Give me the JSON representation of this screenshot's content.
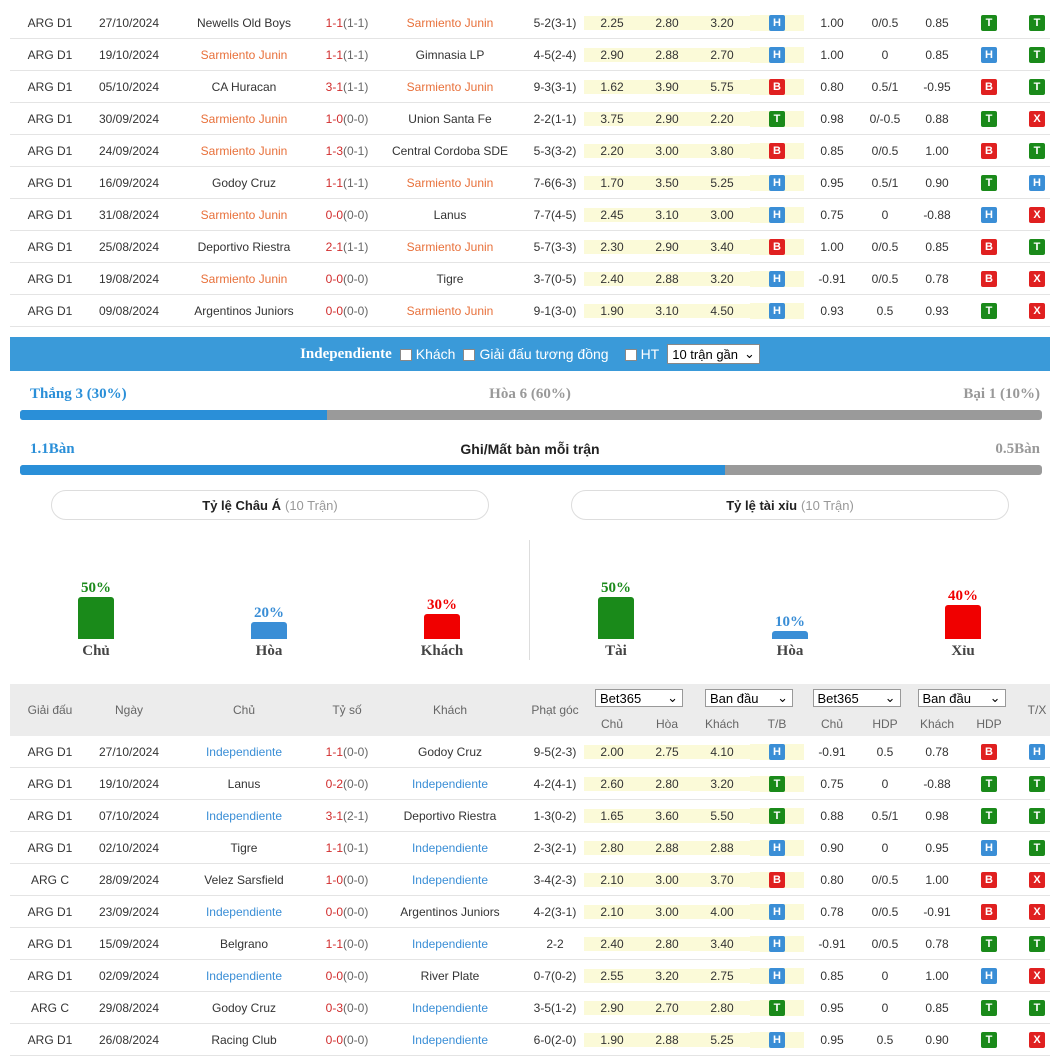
{
  "top_rows": [
    {
      "league": "ARG D1",
      "date": "27/10/2024",
      "home": "Newells Old Boys",
      "home_hl": "",
      "score": "1-1",
      "ht": "(1-1)",
      "away": "Sarmiento Junin",
      "away_hl": "orange",
      "corner": "5-2(3-1)",
      "o1": "2.25",
      "o2": "2.80",
      "o3": "3.20",
      "tb": "H",
      "h1": "1.00",
      "h2": "0/0.5",
      "h3": "0.85",
      "hdp": "T",
      "tx": "T"
    },
    {
      "league": "ARG D1",
      "date": "19/10/2024",
      "home": "Sarmiento Junin",
      "home_hl": "orange",
      "score": "1-1",
      "ht": "(1-1)",
      "away": "Gimnasia LP",
      "away_hl": "",
      "corner": "4-5(2-4)",
      "o1": "2.90",
      "o2": "2.88",
      "o3": "2.70",
      "tb": "H",
      "h1": "1.00",
      "h2": "0",
      "h3": "0.85",
      "hdp": "H",
      "tx": "T"
    },
    {
      "league": "ARG D1",
      "date": "05/10/2024",
      "home": "CA Huracan",
      "home_hl": "",
      "score": "3-1",
      "ht": "(1-1)",
      "away": "Sarmiento Junin",
      "away_hl": "orange",
      "corner": "9-3(3-1)",
      "o1": "1.62",
      "o2": "3.90",
      "o3": "5.75",
      "tb": "B",
      "h1": "0.80",
      "h2": "0.5/1",
      "h3": "-0.95",
      "hdp": "B",
      "tx": "T"
    },
    {
      "league": "ARG D1",
      "date": "30/09/2024",
      "home": "Sarmiento Junin",
      "home_hl": "orange",
      "score": "1-0",
      "ht": "(0-0)",
      "away": "Union Santa Fe",
      "away_hl": "",
      "corner": "2-2(1-1)",
      "o1": "3.75",
      "o2": "2.90",
      "o3": "2.20",
      "tb": "T",
      "h1": "0.98",
      "h2": "0/-0.5",
      "h3": "0.88",
      "hdp": "T",
      "tx": "X"
    },
    {
      "league": "ARG D1",
      "date": "24/09/2024",
      "home": "Sarmiento Junin",
      "home_hl": "orange",
      "score": "1-3",
      "ht": "(0-1)",
      "away": "Central Cordoba SDE",
      "away_hl": "",
      "corner": "5-3(3-2)",
      "o1": "2.20",
      "o2": "3.00",
      "o3": "3.80",
      "tb": "B",
      "h1": "0.85",
      "h2": "0/0.5",
      "h3": "1.00",
      "hdp": "B",
      "tx": "T"
    },
    {
      "league": "ARG D1",
      "date": "16/09/2024",
      "home": "Godoy Cruz",
      "home_hl": "",
      "score": "1-1",
      "ht": "(1-1)",
      "away": "Sarmiento Junin",
      "away_hl": "orange",
      "corner": "7-6(6-3)",
      "o1": "1.70",
      "o2": "3.50",
      "o3": "5.25",
      "tb": "H",
      "h1": "0.95",
      "h2": "0.5/1",
      "h3": "0.90",
      "hdp": "T",
      "tx": "H"
    },
    {
      "league": "ARG D1",
      "date": "31/08/2024",
      "home": "Sarmiento Junin",
      "home_hl": "orange",
      "score": "0-0",
      "ht": "(0-0)",
      "away": "Lanus",
      "away_hl": "",
      "corner": "7-7(4-5)",
      "o1": "2.45",
      "o2": "3.10",
      "o3": "3.00",
      "tb": "H",
      "h1": "0.75",
      "h2": "0",
      "h3": "-0.88",
      "hdp": "H",
      "tx": "X"
    },
    {
      "league": "ARG D1",
      "date": "25/08/2024",
      "home": "Deportivo Riestra",
      "home_hl": "",
      "score": "2-1",
      "ht": "(1-1)",
      "away": "Sarmiento Junin",
      "away_hl": "orange",
      "corner": "5-7(3-3)",
      "o1": "2.30",
      "o2": "2.90",
      "o3": "3.40",
      "tb": "B",
      "h1": "1.00",
      "h2": "0/0.5",
      "h3": "0.85",
      "hdp": "B",
      "tx": "T"
    },
    {
      "league": "ARG D1",
      "date": "19/08/2024",
      "home": "Sarmiento Junin",
      "home_hl": "orange",
      "score": "0-0",
      "ht": "(0-0)",
      "away": "Tigre",
      "away_hl": "",
      "corner": "3-7(0-5)",
      "o1": "2.40",
      "o2": "2.88",
      "o3": "3.20",
      "tb": "H",
      "h1": "-0.91",
      "h2": "0/0.5",
      "h3": "0.78",
      "hdp": "B",
      "tx": "X"
    },
    {
      "league": "ARG D1",
      "date": "09/08/2024",
      "home": "Argentinos Juniors",
      "home_hl": "",
      "score": "0-0",
      "ht": "(0-0)",
      "away": "Sarmiento Junin",
      "away_hl": "orange",
      "corner": "9-1(3-0)",
      "o1": "1.90",
      "o2": "3.10",
      "o3": "4.50",
      "tb": "H",
      "h1": "0.93",
      "h2": "0.5",
      "h3": "0.93",
      "hdp": "T",
      "tx": "X"
    }
  ],
  "team_bar": {
    "team": "Independiente",
    "away_label": "Khách",
    "same_league_label": "Giải đấu tương đồng",
    "ht_label": "HT",
    "recent_select": "10 trận gần"
  },
  "summary": {
    "win": "Thắng 3 (30%)",
    "draw": "Hòa 6 (60%)",
    "loss": "Bại 1 (10%)",
    "win_fraction": 0.3,
    "goals_for": "1.1Bàn",
    "goals_title": "Ghi/Mất bàn mỗi trận",
    "goals_against": "0.5Bàn",
    "goals_fraction": 0.69
  },
  "asian": {
    "title": "Tỷ lệ Châu Á",
    "sub": "(10 Trận)",
    "bars": [
      {
        "pct": "50%",
        "label": "Chủ",
        "color": "#1a8a1a",
        "value": 0.5
      },
      {
        "pct": "20%",
        "label": "Hòa",
        "color": "#3a8ed6",
        "value": 0.2
      },
      {
        "pct": "30%",
        "label": "Khách",
        "color": "#f00000",
        "value": 0.3
      }
    ]
  },
  "ou": {
    "title": "Tỷ lệ tài xỉu",
    "sub": "(10 Trận)",
    "bars": [
      {
        "pct": "50%",
        "label": "Tài",
        "color": "#1a8a1a",
        "value": 0.5
      },
      {
        "pct": "10%",
        "label": "Hòa",
        "color": "#3a8ed6",
        "value": 0.1
      },
      {
        "pct": "40%",
        "label": "Xỉu",
        "color": "#f00000",
        "value": 0.4
      }
    ]
  },
  "header": {
    "league": "Giải đấu",
    "date": "Ngày",
    "home": "Chủ",
    "score": "Tỷ số",
    "away": "Khách",
    "corner": "Phạt góc",
    "book1": "Bet365",
    "type1": "Ban đầu",
    "book2": "Bet365",
    "type2": "Ban đầu",
    "o1": "Chủ",
    "o2": "Hòa",
    "o3": "Khách",
    "tb": "T/B",
    "h1": "Chủ",
    "h2": "HDP",
    "h3": "Khách",
    "hdp": "HDP",
    "tx": "T/X"
  },
  "bottom_rows": [
    {
      "league": "ARG D1",
      "date": "27/10/2024",
      "home": "Independiente",
      "home_hl": "blue",
      "score": "1-1",
      "ht": "(0-0)",
      "away": "Godoy Cruz",
      "away_hl": "",
      "corner": "9-5(2-3)",
      "o1": "2.00",
      "o2": "2.75",
      "o3": "4.10",
      "tb": "H",
      "h1": "-0.91",
      "h2": "0.5",
      "h3": "0.78",
      "hdp": "B",
      "tx": "H"
    },
    {
      "league": "ARG D1",
      "date": "19/10/2024",
      "home": "Lanus",
      "home_hl": "",
      "score": "0-2",
      "ht": "(0-0)",
      "away": "Independiente",
      "away_hl": "blue",
      "corner": "4-2(4-1)",
      "o1": "2.60",
      "o2": "2.80",
      "o3": "3.20",
      "tb": "T",
      "h1": "0.75",
      "h2": "0",
      "h3": "-0.88",
      "hdp": "T",
      "tx": "T"
    },
    {
      "league": "ARG D1",
      "date": "07/10/2024",
      "home": "Independiente",
      "home_hl": "blue",
      "score": "3-1",
      "ht": "(2-1)",
      "away": "Deportivo Riestra",
      "away_hl": "",
      "corner": "1-3(0-2)",
      "o1": "1.65",
      "o2": "3.60",
      "o3": "5.50",
      "tb": "T",
      "h1": "0.88",
      "h2": "0.5/1",
      "h3": "0.98",
      "hdp": "T",
      "tx": "T"
    },
    {
      "league": "ARG D1",
      "date": "02/10/2024",
      "home": "Tigre",
      "home_hl": "",
      "score": "1-1",
      "ht": "(0-1)",
      "away": "Independiente",
      "away_hl": "blue",
      "corner": "2-3(2-1)",
      "o1": "2.80",
      "o2": "2.88",
      "o3": "2.88",
      "tb": "H",
      "h1": "0.90",
      "h2": "0",
      "h3": "0.95",
      "hdp": "H",
      "tx": "T"
    },
    {
      "league": "ARG C",
      "date": "28/09/2024",
      "home": "Velez Sarsfield",
      "home_hl": "",
      "score": "1-0",
      "ht": "(0-0)",
      "away": "Independiente",
      "away_hl": "blue",
      "corner": "3-4(2-3)",
      "o1": "2.10",
      "o2": "3.00",
      "o3": "3.70",
      "tb": "B",
      "h1": "0.80",
      "h2": "0/0.5",
      "h3": "1.00",
      "hdp": "B",
      "tx": "X"
    },
    {
      "league": "ARG D1",
      "date": "23/09/2024",
      "home": "Independiente",
      "home_hl": "blue",
      "score": "0-0",
      "ht": "(0-0)",
      "away": "Argentinos Juniors",
      "away_hl": "",
      "corner": "4-2(3-1)",
      "o1": "2.10",
      "o2": "3.00",
      "o3": "4.00",
      "tb": "H",
      "h1": "0.78",
      "h2": "0/0.5",
      "h3": "-0.91",
      "hdp": "B",
      "tx": "X"
    },
    {
      "league": "ARG D1",
      "date": "15/09/2024",
      "home": "Belgrano",
      "home_hl": "",
      "score": "1-1",
      "ht": "(0-0)",
      "away": "Independiente",
      "away_hl": "blue",
      "corner": "2-2",
      "o1": "2.40",
      "o2": "2.80",
      "o3": "3.40",
      "tb": "H",
      "h1": "-0.91",
      "h2": "0/0.5",
      "h3": "0.78",
      "hdp": "T",
      "tx": "T"
    },
    {
      "league": "ARG D1",
      "date": "02/09/2024",
      "home": "Independiente",
      "home_hl": "blue",
      "score": "0-0",
      "ht": "(0-0)",
      "away": "River Plate",
      "away_hl": "",
      "corner": "0-7(0-2)",
      "o1": "2.55",
      "o2": "3.20",
      "o3": "2.75",
      "tb": "H",
      "h1": "0.85",
      "h2": "0",
      "h3": "1.00",
      "hdp": "H",
      "tx": "X"
    },
    {
      "league": "ARG C",
      "date": "29/08/2024",
      "home": "Godoy Cruz",
      "home_hl": "",
      "score": "0-3",
      "ht": "(0-0)",
      "away": "Independiente",
      "away_hl": "blue",
      "corner": "3-5(1-2)",
      "o1": "2.90",
      "o2": "2.70",
      "o3": "2.80",
      "tb": "T",
      "h1": "0.95",
      "h2": "0",
      "h3": "0.85",
      "hdp": "T",
      "tx": "T"
    },
    {
      "league": "ARG D1",
      "date": "26/08/2024",
      "home": "Racing Club",
      "home_hl": "",
      "score": "0-0",
      "ht": "(0-0)",
      "away": "Independiente",
      "away_hl": "blue",
      "corner": "6-0(2-0)",
      "o1": "1.90",
      "o2": "2.88",
      "o3": "5.25",
      "tb": "H",
      "h1": "0.95",
      "h2": "0.5",
      "h3": "0.90",
      "hdp": "T",
      "tx": "X"
    }
  ]
}
